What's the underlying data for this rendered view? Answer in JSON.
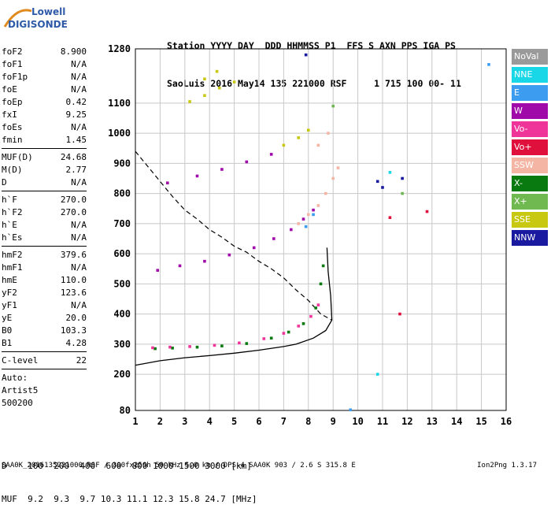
{
  "logo": {
    "line1": "Lowell",
    "line2": "DIGISONDE"
  },
  "header": {
    "line1": "Station YYYY DAY  DDD HHMMSS P1  FFS S AXN PPS IGA PS",
    "line2": "SaoLuis 2016 May14 135 221000 RSF     1 715 100 00- 11"
  },
  "params": {
    "group1": [
      {
        "k": "foF2",
        "v": "8.900"
      },
      {
        "k": "foF1",
        "v": "N/A"
      },
      {
        "k": "foF1p",
        "v": "N/A"
      },
      {
        "k": "foE",
        "v": "N/A"
      },
      {
        "k": "foEp",
        "v": "0.42"
      },
      {
        "k": "fxI",
        "v": "9.25"
      },
      {
        "k": "foEs",
        "v": "N/A"
      },
      {
        "k": "fmin",
        "v": "1.45"
      }
    ],
    "group2": [
      {
        "k": "MUF(D)",
        "v": "24.68"
      },
      {
        "k": "M(D)",
        "v": "2.77"
      },
      {
        "k": "D",
        "v": "N/A"
      }
    ],
    "group3": [
      {
        "k": "h`F",
        "v": "270.0"
      },
      {
        "k": "h`F2",
        "v": "270.0"
      },
      {
        "k": "h`E",
        "v": "N/A"
      },
      {
        "k": "h`Es",
        "v": "N/A"
      }
    ],
    "group4": [
      {
        "k": "hmF2",
        "v": "379.6"
      },
      {
        "k": "hmF1",
        "v": "N/A"
      },
      {
        "k": "hmE",
        "v": "110.0"
      },
      {
        "k": "yF2",
        "v": "123.6"
      },
      {
        "k": "yF1",
        "v": "N/A"
      },
      {
        "k": "yE",
        "v": "20.0"
      },
      {
        "k": "B0",
        "v": "103.3"
      },
      {
        "k": "B1",
        "v": "4.28"
      }
    ],
    "group5": [
      {
        "k": "C-level",
        "v": "22"
      }
    ],
    "autoscale": [
      "Auto:",
      "Artist5",
      "500200"
    ]
  },
  "bottom": {
    "d_line": "D    100  200  400  600  800 1000 1500 3000 [km]",
    "muf_line": "MUF  9.2  9.3  9.7 10.3 11.1 12.3 15.8 24.7 [MHz]"
  },
  "footer": {
    "left": "SAA0K_2016135221000.RSF / 300fx256h 50 kHz 5.0 km / DPS-4 SAA0K 903 / 2.6 S 315.8 E",
    "right": "Ion2Png 1.3.17"
  },
  "legend": [
    {
      "label": "NoVal",
      "color": "#9a9a9a"
    },
    {
      "label": "NNE",
      "color": "#1ad7e8"
    },
    {
      "label": "E",
      "color": "#3c9cf0"
    },
    {
      "label": "W",
      "color": "#a00aa8"
    },
    {
      "label": "Vo-",
      "color": "#f0359a"
    },
    {
      "label": "Vo+",
      "color": "#e0103c"
    },
    {
      "label": "SSW",
      "color": "#f5b5a4"
    },
    {
      "label": "X-",
      "color": "#087a10"
    },
    {
      "label": "X+",
      "color": "#70b850"
    },
    {
      "label": "SSE",
      "color": "#c8c810"
    },
    {
      "label": "NNW",
      "color": "#1a1aa0"
    }
  ],
  "chart_data": {
    "type": "scatter",
    "xlim": [
      1,
      16
    ],
    "ylim": [
      80,
      1280
    ],
    "xticks": [
      "1",
      "2",
      "3",
      "4",
      "5",
      "6",
      "7",
      "8",
      "9",
      "10",
      "11",
      "12",
      "13",
      "14",
      "15",
      "16"
    ],
    "yticks": [
      "80",
      "200",
      "300",
      "400",
      "500",
      "600",
      "700",
      "800",
      "900",
      "1000",
      "1100",
      "1280"
    ],
    "grid": true,
    "series": [
      {
        "name": "X-",
        "color": "#087a10",
        "points": [
          [
            1.8,
            285
          ],
          [
            2.5,
            287
          ],
          [
            3.5,
            290
          ],
          [
            4.5,
            294
          ],
          [
            5.5,
            302
          ],
          [
            6.5,
            320
          ],
          [
            7.2,
            340
          ],
          [
            7.8,
            368
          ],
          [
            8.3,
            420
          ],
          [
            8.5,
            500
          ],
          [
            8.6,
            560
          ]
        ]
      },
      {
        "name": "Vo-",
        "color": "#f0359a",
        "points": [
          [
            1.7,
            288
          ],
          [
            2.4,
            290
          ],
          [
            3.2,
            292
          ],
          [
            4.2,
            296
          ],
          [
            5.2,
            304
          ],
          [
            6.2,
            318
          ],
          [
            7.0,
            336
          ],
          [
            7.6,
            360
          ],
          [
            8.1,
            392
          ],
          [
            8.4,
            430
          ]
        ]
      },
      {
        "name": "W",
        "color": "#a00aa8",
        "points": [
          [
            1.9,
            545
          ],
          [
            2.8,
            560
          ],
          [
            3.8,
            575
          ],
          [
            4.8,
            596
          ],
          [
            5.8,
            620
          ],
          [
            6.6,
            650
          ],
          [
            7.3,
            680
          ],
          [
            7.8,
            715
          ],
          [
            8.2,
            745
          ],
          [
            2.3,
            835
          ],
          [
            3.5,
            858
          ],
          [
            4.5,
            880
          ],
          [
            5.5,
            905
          ],
          [
            6.5,
            930
          ]
        ]
      },
      {
        "name": "SSW",
        "color": "#f5b5a4",
        "points": [
          [
            7.6,
            700
          ],
          [
            8.0,
            730
          ],
          [
            8.4,
            760
          ],
          [
            8.7,
            800
          ],
          [
            9.0,
            850
          ],
          [
            9.2,
            885
          ],
          [
            8.4,
            960
          ],
          [
            8.8,
            1000
          ]
        ]
      },
      {
        "name": "SSE",
        "color": "#c8c810",
        "points": [
          [
            7.0,
            960
          ],
          [
            7.6,
            985
          ],
          [
            8.0,
            1010
          ],
          [
            3.2,
            1105
          ],
          [
            3.8,
            1125
          ],
          [
            4.4,
            1150
          ],
          [
            5.0,
            1170
          ],
          [
            3.8,
            1180
          ],
          [
            4.3,
            1205
          ]
        ]
      },
      {
        "name": "E",
        "color": "#3c9cf0",
        "points": [
          [
            7.9,
            690
          ],
          [
            8.2,
            730
          ],
          [
            15.3,
            1228
          ],
          [
            9.7,
            82
          ]
        ]
      },
      {
        "name": "NNW",
        "color": "#1a1aa0",
        "points": [
          [
            7.9,
            1260
          ],
          [
            10.8,
            840
          ],
          [
            11.0,
            820
          ],
          [
            11.8,
            850
          ]
        ]
      },
      {
        "name": "X+",
        "color": "#70b850",
        "points": [
          [
            9.0,
            1090
          ],
          [
            11.8,
            800
          ]
        ]
      },
      {
        "name": "Vo+",
        "color": "#e0103c",
        "points": [
          [
            11.3,
            720
          ],
          [
            12.8,
            740
          ],
          [
            11.7,
            400
          ]
        ]
      },
      {
        "name": "NNE",
        "color": "#1ad7e8",
        "points": [
          [
            10.8,
            200
          ],
          [
            11.3,
            870
          ]
        ]
      }
    ],
    "profile_solid": [
      [
        1,
        230
      ],
      [
        2,
        245
      ],
      [
        3,
        255
      ],
      [
        4,
        262
      ],
      [
        5,
        270
      ],
      [
        6,
        280
      ],
      [
        7,
        292
      ],
      [
        7.5,
        300
      ],
      [
        8.2,
        320
      ],
      [
        8.7,
        345
      ],
      [
        8.95,
        380
      ],
      [
        8.9,
        460
      ],
      [
        8.8,
        540
      ],
      [
        8.75,
        620
      ]
    ],
    "profile_dashed": [
      [
        1,
        940
      ],
      [
        1.5,
        890
      ],
      [
        2,
        840
      ],
      [
        2.5,
        790
      ],
      [
        3,
        745
      ],
      [
        3.5,
        715
      ],
      [
        4,
        680
      ],
      [
        4.5,
        655
      ],
      [
        5,
        625
      ],
      [
        5.5,
        605
      ],
      [
        6,
        575
      ],
      [
        6.5,
        550
      ],
      [
        7,
        520
      ],
      [
        7.5,
        480
      ],
      [
        8,
        445
      ],
      [
        8.5,
        400
      ],
      [
        8.95,
        380
      ]
    ]
  }
}
